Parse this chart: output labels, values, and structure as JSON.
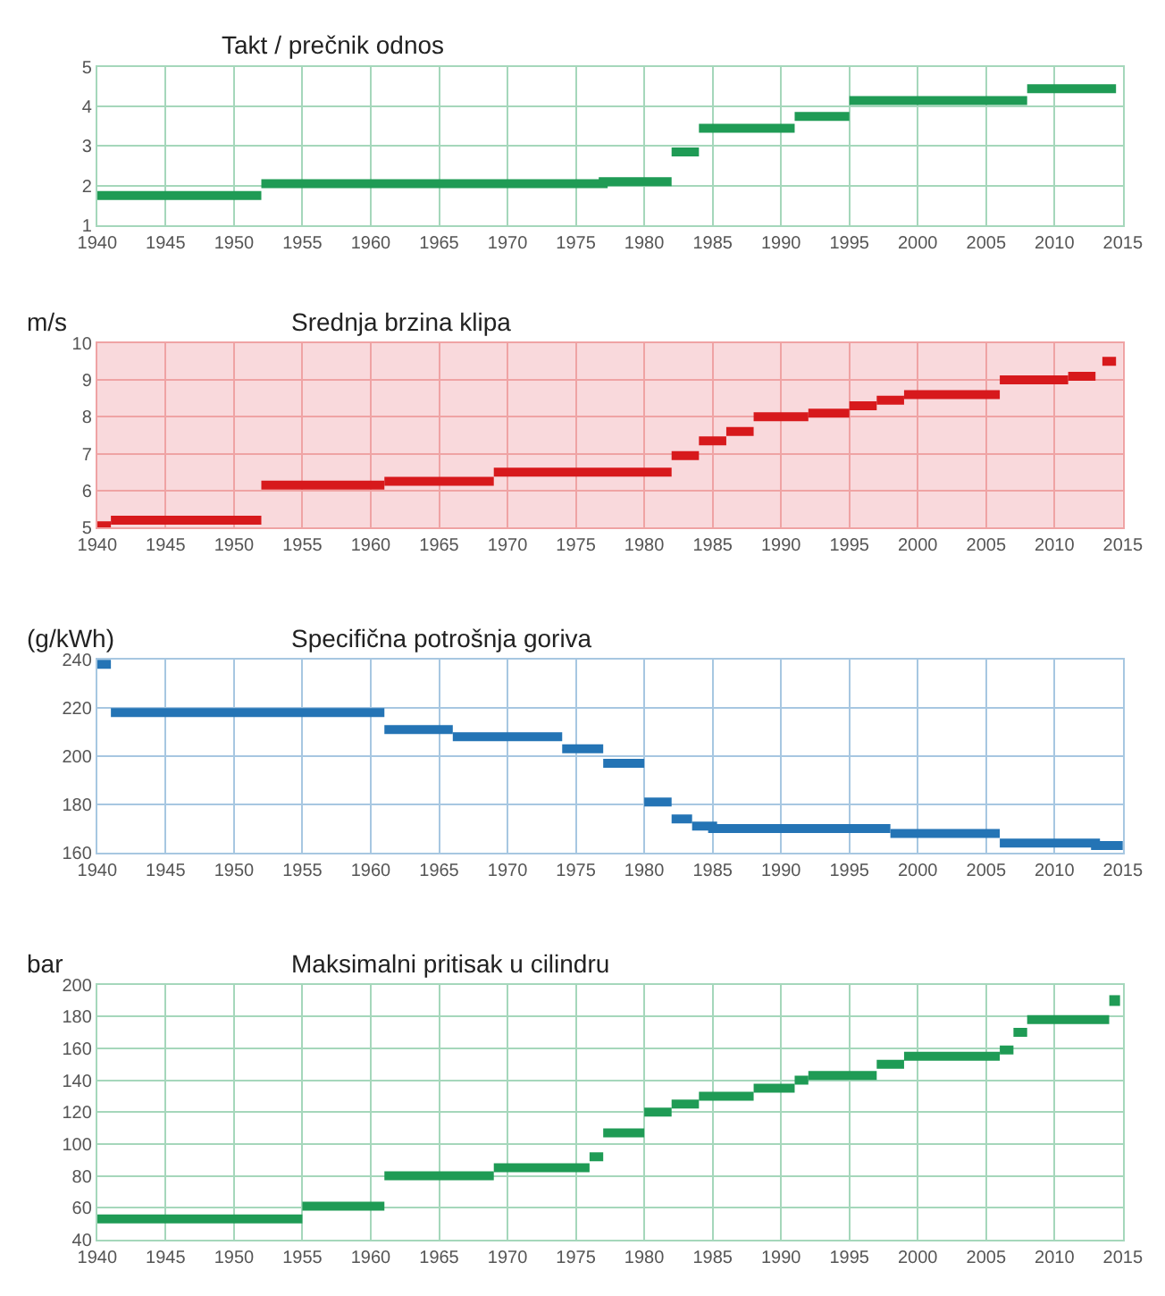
{
  "chart_data": [
    {
      "type": "line",
      "title": "Takt / prečnik odnos",
      "xlim": [
        1940,
        2015
      ],
      "xticks": [
        1940,
        1945,
        1950,
        1955,
        1960,
        1965,
        1970,
        1975,
        1980,
        1985,
        1990,
        1995,
        2000,
        2005,
        2010,
        2015
      ],
      "ylim": [
        1,
        5
      ],
      "yticks": [
        1,
        2,
        3,
        4,
        5
      ],
      "grid": true,
      "marker": "none",
      "line_style": "solid",
      "series": [
        {
          "color": "#1f9b55",
          "x": [
            1940,
            1952
          ],
          "values": [
            1.75,
            1.75
          ]
        },
        {
          "color": "#1f9b55",
          "x": [
            1952,
            1977,
            1977,
            1982
          ],
          "values": [
            2.05,
            2.05,
            2.1,
            2.1
          ]
        },
        {
          "color": "#1f9b55",
          "x": [
            1982,
            1984
          ],
          "values": [
            2.85,
            2.85
          ]
        },
        {
          "color": "#1f9b55",
          "x": [
            1984,
            1991
          ],
          "values": [
            3.45,
            3.45
          ]
        },
        {
          "color": "#1f9b55",
          "x": [
            1991,
            1995
          ],
          "values": [
            3.75,
            3.75
          ]
        },
        {
          "color": "#1f9b55",
          "x": [
            1995,
            2008
          ],
          "values": [
            4.15,
            4.15
          ]
        },
        {
          "color": "#1f9b55",
          "x": [
            2008,
            2014.5
          ],
          "values": [
            4.45,
            4.45
          ]
        }
      ]
    },
    {
      "type": "line",
      "title": "Srednja brzina klipa",
      "ylabel": "m/s",
      "xlim": [
        1940,
        2015
      ],
      "xticks": [
        1940,
        1945,
        1950,
        1955,
        1960,
        1965,
        1970,
        1975,
        1980,
        1985,
        1990,
        1995,
        2000,
        2005,
        2010,
        2015
      ],
      "ylim": [
        5,
        10
      ],
      "yticks": [
        5,
        6,
        7,
        8,
        9,
        10
      ],
      "grid": true,
      "marker": "none",
      "line_style": "solid",
      "bands": [
        {
          "axis": "y",
          "from": 5,
          "to": 10,
          "color": "#f9d9dc"
        }
      ],
      "series": [
        {
          "color": "#d7191c",
          "x": [
            1940,
            1941
          ],
          "values": [
            5.05,
            5.05
          ]
        },
        {
          "color": "#d7191c",
          "x": [
            1941,
            1952
          ],
          "values": [
            5.2,
            5.2
          ]
        },
        {
          "color": "#d7191c",
          "x": [
            1952,
            1961
          ],
          "values": [
            6.15,
            6.15
          ]
        },
        {
          "color": "#d7191c",
          "x": [
            1961,
            1969
          ],
          "values": [
            6.25,
            6.25
          ]
        },
        {
          "color": "#d7191c",
          "x": [
            1969,
            1982
          ],
          "values": [
            6.5,
            6.5
          ]
        },
        {
          "color": "#d7191c",
          "x": [
            1982,
            1984
          ],
          "values": [
            6.95,
            6.95
          ]
        },
        {
          "color": "#d7191c",
          "x": [
            1984,
            1986
          ],
          "values": [
            7.35,
            7.35
          ]
        },
        {
          "color": "#d7191c",
          "x": [
            1986,
            1988
          ],
          "values": [
            7.6,
            7.6
          ]
        },
        {
          "color": "#d7191c",
          "x": [
            1988,
            1992
          ],
          "values": [
            8.0,
            8.0
          ]
        },
        {
          "color": "#d7191c",
          "x": [
            1992,
            1995
          ],
          "values": [
            8.1,
            8.1
          ]
        },
        {
          "color": "#d7191c",
          "x": [
            1995,
            1997
          ],
          "values": [
            8.3,
            8.3
          ]
        },
        {
          "color": "#d7191c",
          "x": [
            1997,
            1999
          ],
          "values": [
            8.45,
            8.45
          ]
        },
        {
          "color": "#d7191c",
          "x": [
            1999,
            2006
          ],
          "values": [
            8.6,
            8.6
          ]
        },
        {
          "color": "#d7191c",
          "x": [
            2006,
            2011
          ],
          "values": [
            9.0,
            9.0
          ]
        },
        {
          "color": "#d7191c",
          "x": [
            2011,
            2013
          ],
          "values": [
            9.1,
            9.1
          ]
        },
        {
          "color": "#d7191c",
          "x": [
            2013.5,
            2014.5
          ],
          "values": [
            9.5,
            9.5
          ]
        }
      ]
    },
    {
      "type": "line",
      "title": "Specifična potrošnja goriva",
      "ylabel": "(g/kWh)",
      "xlim": [
        1940,
        2015
      ],
      "xticks": [
        1940,
        1945,
        1950,
        1955,
        1960,
        1965,
        1970,
        1975,
        1980,
        1985,
        1990,
        1995,
        2000,
        2005,
        2010,
        2015
      ],
      "ylim": [
        160,
        240
      ],
      "yticks": [
        160,
        180,
        200,
        220,
        240
      ],
      "grid": true,
      "marker": "none",
      "line_style": "solid",
      "series": [
        {
          "color": "#2474b5",
          "x": [
            1940,
            1941
          ],
          "values": [
            238,
            238
          ]
        },
        {
          "color": "#2474b5",
          "x": [
            1941,
            1961
          ],
          "values": [
            218,
            218
          ]
        },
        {
          "color": "#2474b5",
          "x": [
            1961,
            1966
          ],
          "values": [
            211,
            211
          ]
        },
        {
          "color": "#2474b5",
          "x": [
            1966,
            1974
          ],
          "values": [
            208,
            208
          ]
        },
        {
          "color": "#2474b5",
          "x": [
            1974,
            1977
          ],
          "values": [
            203,
            203
          ]
        },
        {
          "color": "#2474b5",
          "x": [
            1977,
            1980
          ],
          "values": [
            197,
            197
          ]
        },
        {
          "color": "#2474b5",
          "x": [
            1980,
            1982
          ],
          "values": [
            181,
            181
          ]
        },
        {
          "color": "#2474b5",
          "x": [
            1982,
            1983.5
          ],
          "values": [
            174,
            174
          ]
        },
        {
          "color": "#2474b5",
          "x": [
            1983.5,
            1985,
            1985,
            1998
          ],
          "values": [
            171,
            171,
            170,
            170
          ]
        },
        {
          "color": "#2474b5",
          "x": [
            1998,
            2006
          ],
          "values": [
            168,
            168
          ]
        },
        {
          "color": "#2474b5",
          "x": [
            2006,
            2013,
            2013,
            2015
          ],
          "values": [
            164,
            164,
            163,
            163
          ]
        }
      ]
    },
    {
      "type": "line",
      "title": "Maksimalni pritisak u cilindru",
      "ylabel": "bar",
      "xlim": [
        1940,
        2015
      ],
      "xticks": [
        1940,
        1945,
        1950,
        1955,
        1960,
        1965,
        1970,
        1975,
        1980,
        1985,
        1990,
        1995,
        2000,
        2005,
        2010,
        2015
      ],
      "ylim": [
        40,
        200
      ],
      "yticks": [
        40,
        60,
        80,
        100,
        120,
        140,
        160,
        180,
        200
      ],
      "grid": true,
      "marker": "none",
      "line_style": "solid",
      "series": [
        {
          "color": "#1f9b55",
          "x": [
            1940,
            1955
          ],
          "values": [
            53,
            53
          ]
        },
        {
          "color": "#1f9b55",
          "x": [
            1955,
            1961
          ],
          "values": [
            61,
            61
          ]
        },
        {
          "color": "#1f9b55",
          "x": [
            1961,
            1969
          ],
          "values": [
            80,
            80
          ]
        },
        {
          "color": "#1f9b55",
          "x": [
            1969,
            1976
          ],
          "values": [
            85,
            85
          ]
        },
        {
          "color": "#1f9b55",
          "x": [
            1976,
            1977
          ],
          "values": [
            92,
            92
          ]
        },
        {
          "color": "#1f9b55",
          "x": [
            1977,
            1980
          ],
          "values": [
            107,
            107
          ]
        },
        {
          "color": "#1f9b55",
          "x": [
            1980,
            1982
          ],
          "values": [
            120,
            120
          ]
        },
        {
          "color": "#1f9b55",
          "x": [
            1982,
            1984
          ],
          "values": [
            125,
            125
          ]
        },
        {
          "color": "#1f9b55",
          "x": [
            1984,
            1988
          ],
          "values": [
            130,
            130
          ]
        },
        {
          "color": "#1f9b55",
          "x": [
            1988,
            1991
          ],
          "values": [
            135,
            135
          ]
        },
        {
          "color": "#1f9b55",
          "x": [
            1991,
            1992
          ],
          "values": [
            140,
            140
          ]
        },
        {
          "color": "#1f9b55",
          "x": [
            1992,
            1997
          ],
          "values": [
            143,
            143
          ]
        },
        {
          "color": "#1f9b55",
          "x": [
            1997,
            1999
          ],
          "values": [
            150,
            150
          ]
        },
        {
          "color": "#1f9b55",
          "x": [
            1999,
            2006
          ],
          "values": [
            155,
            155
          ]
        },
        {
          "color": "#1f9b55",
          "x": [
            2006,
            2007
          ],
          "values": [
            159,
            159
          ]
        },
        {
          "color": "#1f9b55",
          "x": [
            2007,
            2008
          ],
          "values": [
            170,
            170
          ]
        },
        {
          "color": "#1f9b55",
          "x": [
            2008,
            2014
          ],
          "values": [
            178,
            178
          ]
        },
        {
          "type": "scatter",
          "marker": "square",
          "color": "#1f9b55",
          "x": [
            2014.4
          ],
          "values": [
            190
          ]
        }
      ]
    }
  ]
}
